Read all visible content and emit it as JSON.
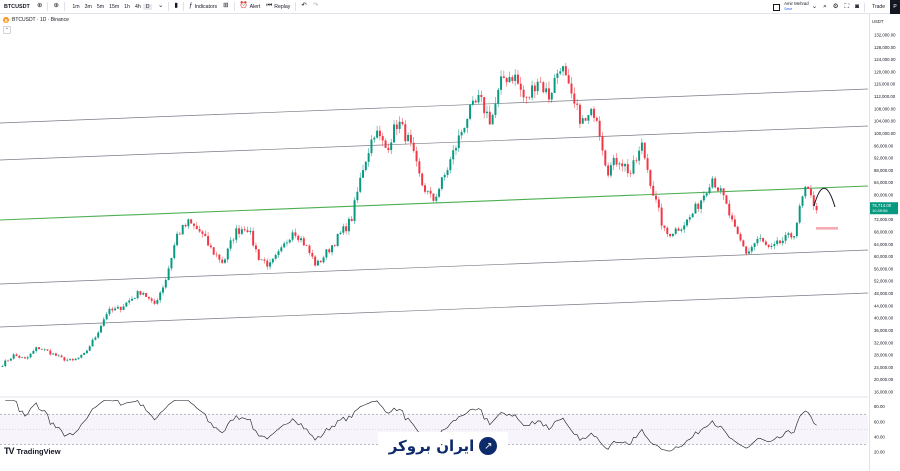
{
  "toolbar": {
    "symbol": "BTCUSDT",
    "timeframes": [
      "1m",
      "3m",
      "5m",
      "15m",
      "1h",
      "4h",
      "D"
    ],
    "active_timeframe": "D",
    "indicators_label": "Indicators",
    "alert_label": "Alert",
    "replay_label": "Replay",
    "user_name": "Amir Mehrad",
    "user_sub": "Save",
    "trade_label": "Trade"
  },
  "legend": {
    "title": "BTCUSDT · 1D · Binance",
    "collapse": "⌃"
  },
  "price_axis": {
    "currency": "USDT",
    "ticks": [
      132000,
      128000,
      124000,
      120000,
      116000,
      112000,
      108000,
      104000,
      100000,
      96000,
      92000,
      88000,
      84000,
      80000,
      76000,
      72000,
      68000,
      64000,
      60000,
      56000,
      52000,
      48000,
      44000,
      40000,
      36000,
      32000,
      28000,
      24000,
      20000,
      16000
    ],
    "last_price": "75,714.00",
    "countdown": "10:39:56",
    "last_price_value": 75714,
    "colors": {
      "up": "#089981",
      "down": "#f23645",
      "trend": "#4caf50",
      "channel": "#787b86"
    }
  },
  "rsi_axis": {
    "ticks": [
      80,
      60,
      40,
      20
    ]
  },
  "branding": {
    "tradingview": "TradingView",
    "broker": "ایران بروکر"
  },
  "chart_data": {
    "type": "candlestick",
    "title": "BTCUSDT · 1D · Binance",
    "ylim": [
      16000,
      134000
    ],
    "waypoints": [
      25000,
      28000,
      26500,
      30500,
      29000,
      27000,
      26000,
      28000,
      34000,
      42000,
      43000,
      46000,
      49000,
      44000,
      52000,
      67000,
      71000,
      68000,
      62000,
      58000,
      68000,
      70000,
      60000,
      57000,
      62000,
      69000,
      64000,
      57000,
      62000,
      67000,
      72000,
      89000,
      101000,
      95000,
      104000,
      97000,
      84000,
      78000,
      86000,
      96000,
      106000,
      111000,
      104000,
      118000,
      119000,
      110000,
      118000,
      112000,
      123000,
      110000,
      103000,
      108000,
      88000,
      92000,
      87000,
      96000,
      80000,
      67000,
      69000,
      72000,
      78000,
      86000,
      79000,
      68000,
      61000,
      66000,
      62000,
      65000,
      67000,
      82000,
      76000
    ],
    "rsi_ylim": [
      15,
      90
    ],
    "rsi_levels": [
      70,
      30
    ]
  }
}
